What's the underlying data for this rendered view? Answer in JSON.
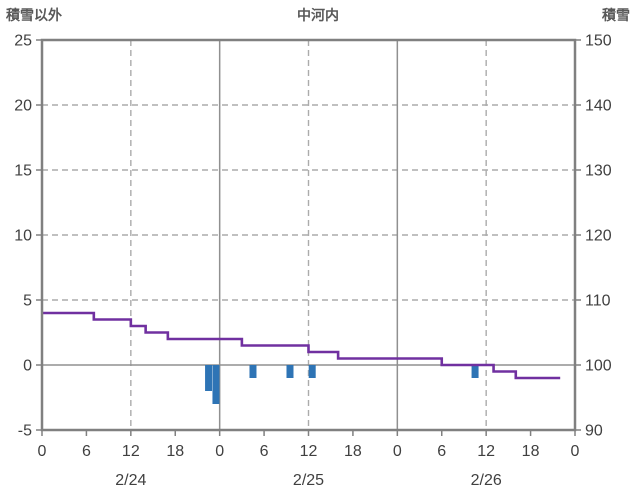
{
  "header": {
    "left_axis_title": "積雪以外",
    "station_title": "中河内",
    "right_axis_title": "積雪"
  },
  "colors": {
    "line": "#7030A0",
    "bar": "#2E74B5",
    "grid_dashed": "#ABABAB",
    "zero_line": "#909090",
    "axis_border": "#808080",
    "tick_text": "#404040",
    "header_text": "#595959"
  },
  "chart_data": {
    "type": "line+bar",
    "title": "中河内",
    "left_axis": {
      "title": "積雪以外",
      "min": -5,
      "max": 25,
      "ticks": [
        25,
        20,
        15,
        10,
        5,
        0,
        -5
      ]
    },
    "right_axis": {
      "title": "積雪",
      "min": 90,
      "max": 150,
      "ticks": [
        150,
        140,
        130,
        120,
        110,
        100,
        90
      ]
    },
    "x_axis": {
      "unit": "hour",
      "min": 0,
      "max": 72,
      "tick_step": 6,
      "tick_labels": [
        "0",
        "6",
        "12",
        "18",
        "0",
        "6",
        "12",
        "18",
        "0",
        "6",
        "12",
        "18",
        "0"
      ],
      "day_labels": [
        {
          "label": "2/24",
          "hour": 12
        },
        {
          "label": "2/25",
          "hour": 36
        },
        {
          "label": "2/26",
          "hour": 60
        }
      ],
      "solid_gridline_hours": [
        24,
        48
      ],
      "dashed_gridline_hours": [
        12,
        36,
        60
      ]
    },
    "series": [
      {
        "name": "積雪",
        "type": "line",
        "axis": "right",
        "unit": "cm",
        "values_hourly": [
          108,
          108,
          108,
          108,
          108,
          108,
          108,
          107,
          107,
          107,
          107,
          107,
          106,
          106,
          105,
          105,
          105,
          104,
          104,
          104,
          104,
          104,
          104,
          104,
          104,
          104,
          104,
          103,
          103,
          103,
          103,
          103,
          103,
          103,
          103,
          103,
          102,
          102,
          102,
          102,
          101,
          101,
          101,
          101,
          101,
          101,
          101,
          101,
          101,
          101,
          101,
          101,
          101,
          101,
          100,
          100,
          100,
          100,
          100,
          100,
          100,
          99,
          99,
          99,
          98,
          98,
          98,
          98,
          98,
          98,
          98
        ]
      },
      {
        "name": "積雪以外",
        "type": "bar",
        "axis": "left",
        "points": [
          {
            "hour": 22,
            "value": -2
          },
          {
            "hour": 23,
            "value": -3
          },
          {
            "hour": 28,
            "value": -1
          },
          {
            "hour": 33,
            "value": -1
          },
          {
            "hour": 36,
            "value": -1
          },
          {
            "hour": 58,
            "value": -1
          }
        ]
      }
    ]
  }
}
